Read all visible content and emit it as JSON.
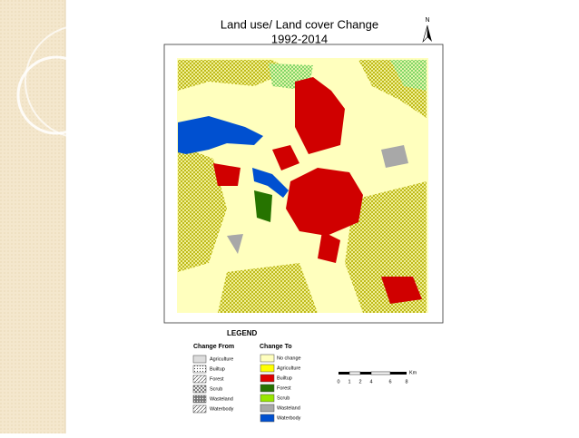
{
  "header": {
    "title": "Land use/ Land cover Change",
    "subtitle": "1992-2014",
    "north": "N"
  },
  "legend": {
    "title": "LEGEND",
    "change_from": {
      "heading": "Change From",
      "items": [
        "Agriculture",
        "Builtup",
        "Forest",
        "Scrub",
        "Wasteland",
        "Waterbody"
      ]
    },
    "change_to": {
      "heading": "Change To",
      "items": [
        {
          "label": "No change",
          "color": "#ffffbe"
        },
        {
          "label": "Agriculture",
          "color": "#ffff00"
        },
        {
          "label": "Builtup",
          "color": "#e00000"
        },
        {
          "label": "Forest",
          "color": "#267300"
        },
        {
          "label": "Scrub",
          "color": "#98e600"
        },
        {
          "label": "Wasteland",
          "color": "#a8a8a8"
        },
        {
          "label": "Waterbody",
          "color": "#0050d0"
        }
      ]
    }
  },
  "scale_bar": {
    "labels": [
      "0",
      "1",
      "2",
      "4",
      "6",
      "8"
    ],
    "unit": "Km"
  }
}
